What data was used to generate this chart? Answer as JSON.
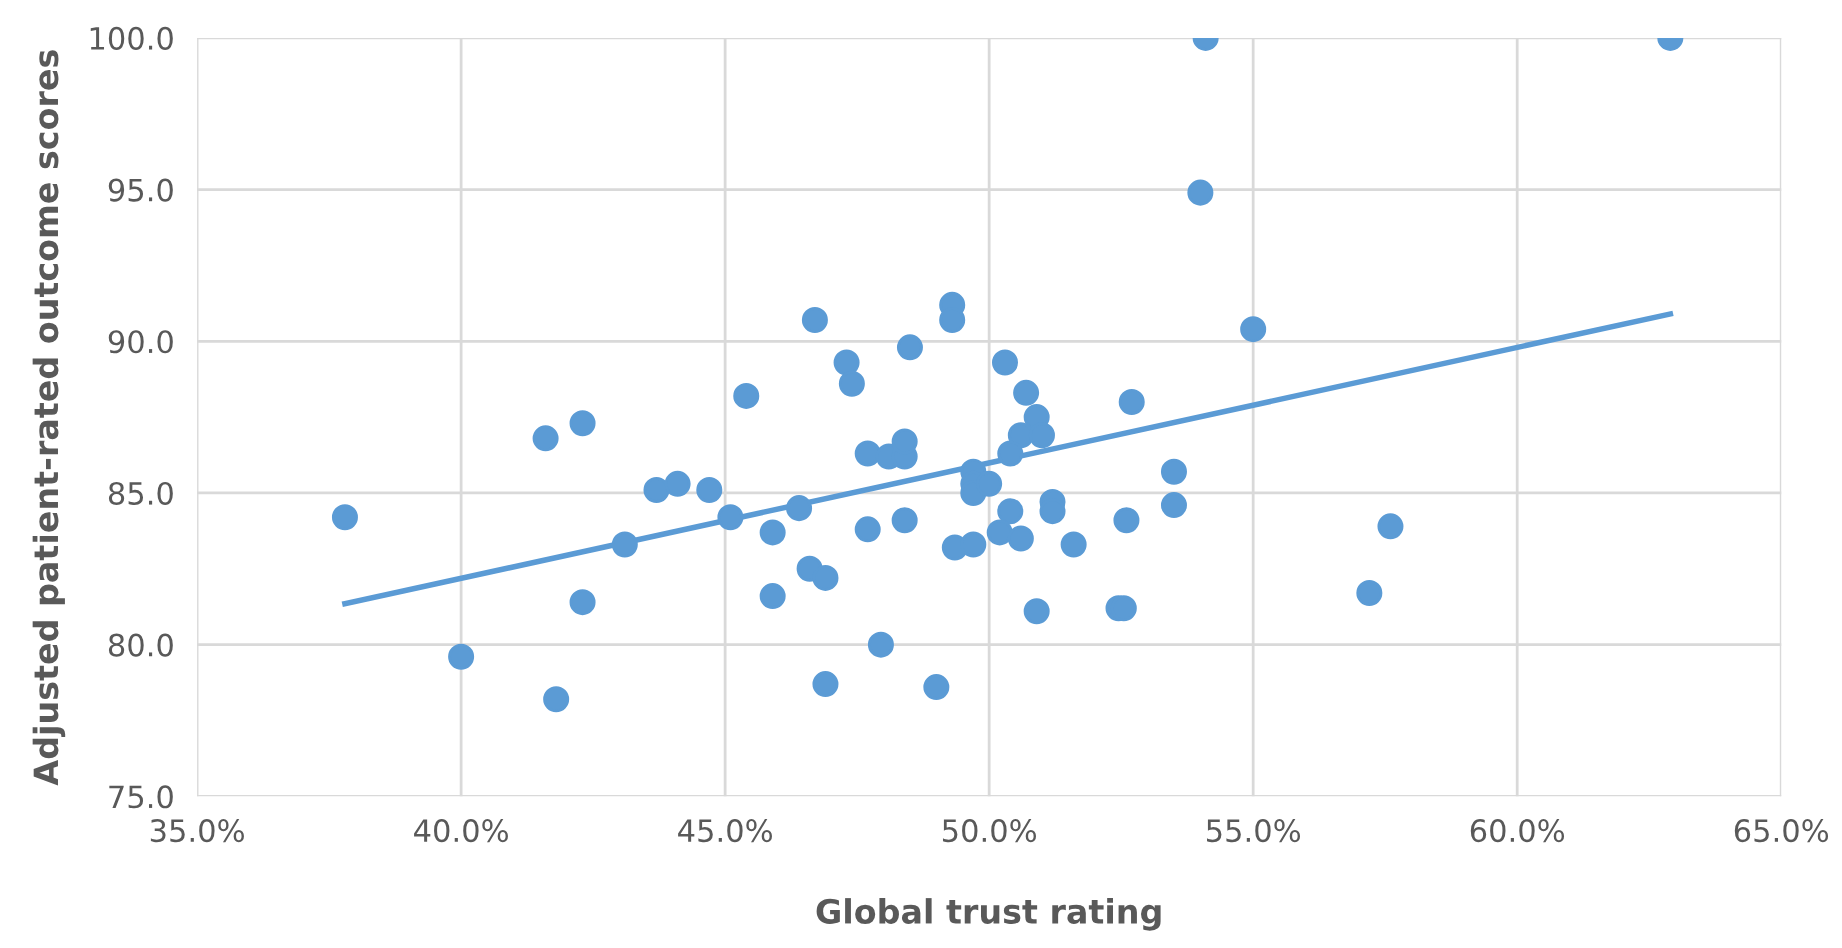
{
  "chart_data": {
    "type": "scatter",
    "xlabel": "Global trust rating",
    "ylabel": "Adjusted patient-rated outcome scores",
    "series": [
      {
        "color": "#5b9bd5",
        "marker": "circle",
        "x": [
          37.8,
          40.0,
          41.6,
          42.3,
          41.8,
          42.3,
          43.1,
          43.7,
          44.1,
          44.7,
          45.1,
          45.4,
          45.9,
          45.9,
          46.4,
          46.7,
          46.6,
          46.9,
          46.9,
          47.3,
          47.4,
          47.7,
          47.7,
          47.95,
          48.1,
          48.4,
          48.4,
          48.4,
          48.5,
          49.0,
          49.3,
          49.3,
          49.35,
          49.7,
          49.7,
          49.7,
          49.7,
          50.0,
          50.3,
          50.7,
          50.9,
          50.6,
          51.0,
          50.4,
          50.4,
          51.2,
          51.2,
          50.2,
          50.6,
          51.6,
          50.9,
          52.45,
          52.55,
          52.6,
          52.7,
          53.5,
          53.5,
          55.0,
          57.2,
          57.6,
          54.1,
          54.0,
          62.9
        ],
        "values": [
          84.2,
          79.6,
          86.8,
          87.3,
          78.2,
          81.4,
          83.3,
          85.1,
          85.3,
          85.1,
          84.2,
          88.2,
          83.7,
          81.6,
          84.5,
          90.7,
          82.5,
          82.2,
          78.7,
          89.3,
          88.6,
          86.3,
          83.8,
          80.0,
          86.2,
          86.2,
          86.7,
          84.1,
          89.8,
          78.6,
          91.2,
          90.7,
          83.2,
          83.3,
          85.7,
          85.3,
          85.0,
          85.3,
          89.3,
          88.3,
          87.5,
          86.9,
          86.9,
          86.3,
          84.4,
          84.7,
          84.4,
          83.7,
          83.5,
          83.3,
          81.1,
          81.2,
          81.2,
          84.1,
          88.0,
          85.7,
          84.6,
          90.4,
          81.7,
          83.9,
          100.0,
          94.9,
          100.0
        ]
      },
      {
        "type": "line",
        "marker": "none",
        "color": "#5b9bd5",
        "x": [
          37.8,
          62.9
        ],
        "values": [
          81.35,
          90.9
        ]
      }
    ],
    "xlim": [
      35,
      65
    ],
    "xticks": [
      {
        "value": 35,
        "label": "35.0%"
      },
      {
        "value": 40,
        "label": "40.0%"
      },
      {
        "value": 45,
        "label": "45.0%"
      },
      {
        "value": 50,
        "label": "50.0%"
      },
      {
        "value": 55,
        "label": "55.0%"
      },
      {
        "value": 60,
        "label": "60.0%"
      },
      {
        "value": 65,
        "label": "65.0%"
      }
    ],
    "ylim": [
      75,
      100
    ],
    "yticks": [
      {
        "value": 75,
        "label": "75.0"
      },
      {
        "value": 80,
        "label": "80.0"
      },
      {
        "value": 85,
        "label": "85.0"
      },
      {
        "value": 90,
        "label": "90.0"
      },
      {
        "value": 95,
        "label": "95.0"
      },
      {
        "value": 100,
        "label": "100.0"
      }
    ],
    "grid": true,
    "legend": false
  }
}
